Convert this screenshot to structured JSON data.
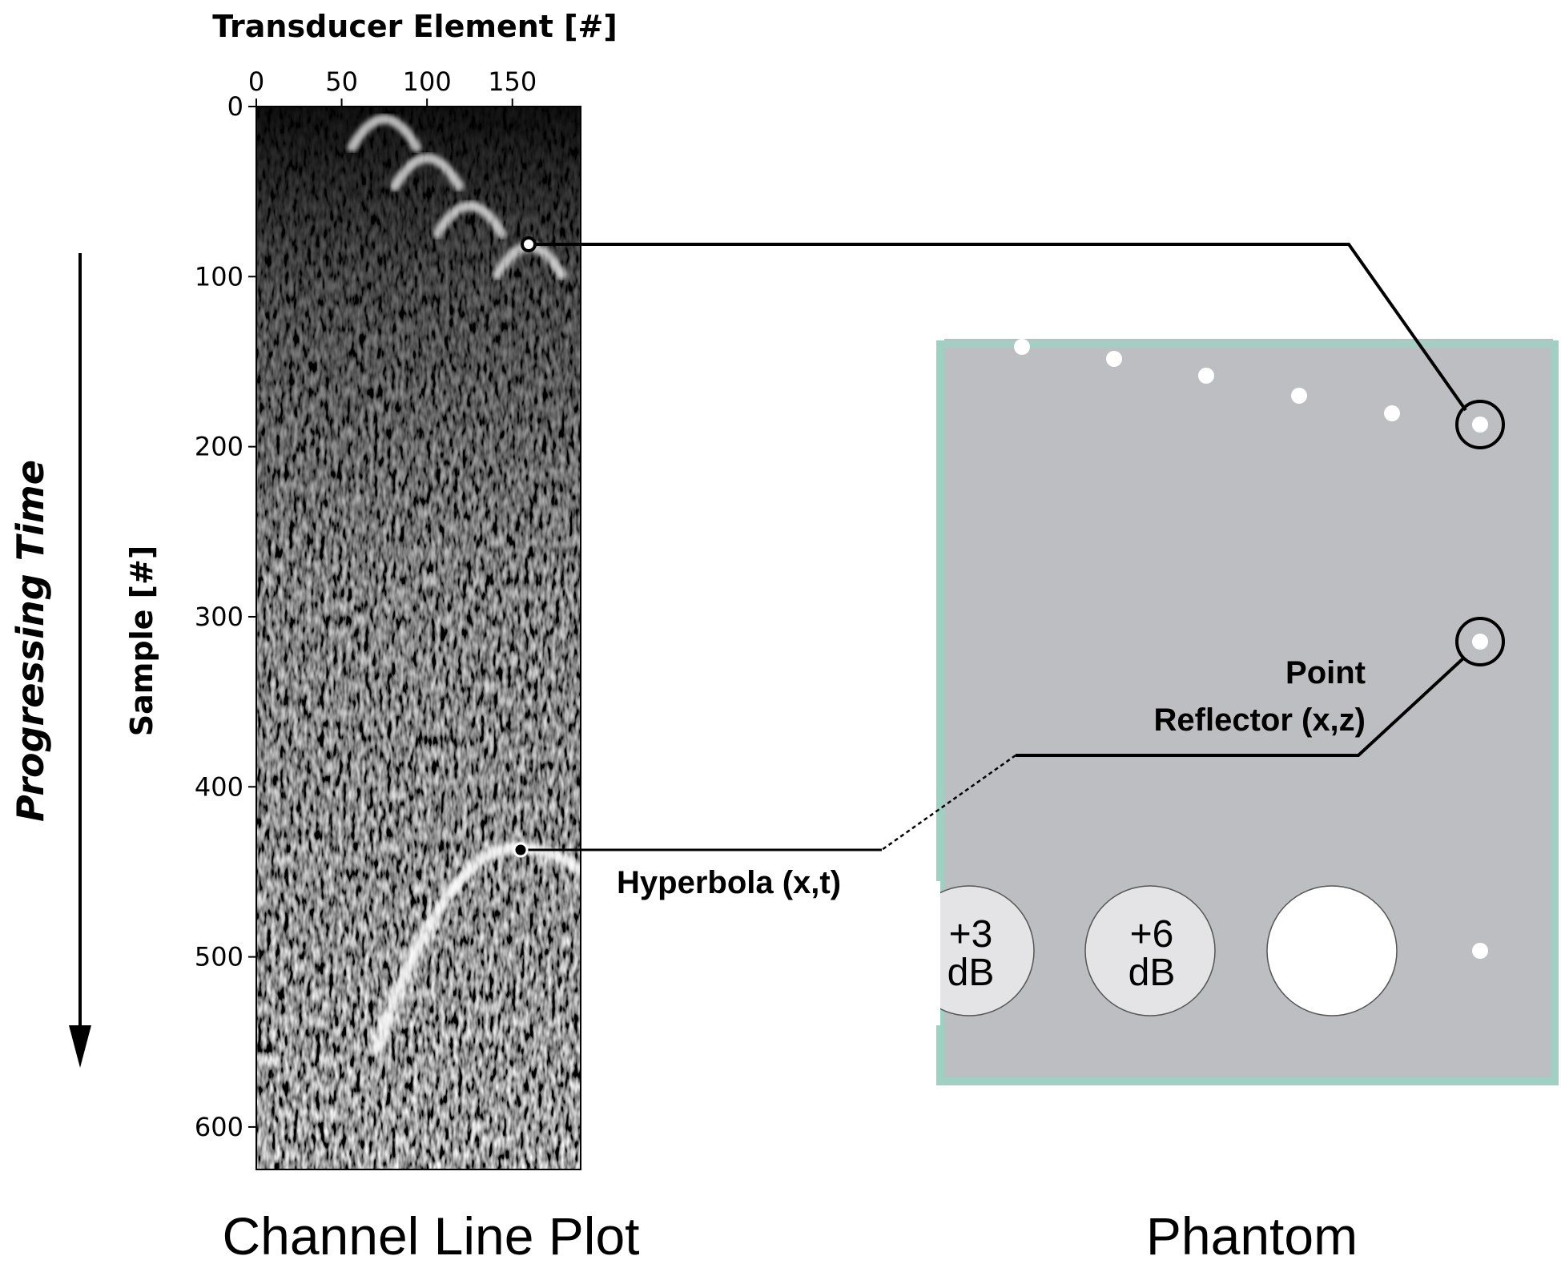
{
  "channel_plot": {
    "x_axis_title": "Transducer Element [#]",
    "y_axis_title": "Sample [#]",
    "x_ticks": [
      "0",
      "50",
      "100",
      "150"
    ],
    "y_ticks": [
      "0",
      "100",
      "200",
      "300",
      "400",
      "500",
      "600"
    ],
    "caption": "Channel Line Plot"
  },
  "time_arrow_label": "Progressing Time",
  "phantom": {
    "caption": "Phantom",
    "inclusion_labels": [
      {
        "line1": "+3",
        "line2": "dB"
      },
      {
        "line1": "+6",
        "line2": "dB"
      }
    ]
  },
  "annotations": {
    "point_reflector_line1": "Point",
    "point_reflector_line2": "Reflector (x,z)",
    "hyperbola": "Hyperbola (x,t)"
  },
  "colors": {
    "phantom_fill": "#bdbec1",
    "phantom_border": "#9fd1c2",
    "inclusion_fill": "#e4e4e6",
    "anechoic_fill": "#ffffff"
  },
  "chart_data": {
    "type": "heatmap",
    "x_values_shown": "transducer elements 0 to 190",
    "y_values_shown": "samples 0 to 625",
    "xlim": [
      0,
      190
    ],
    "ylim": [
      625,
      0
    ],
    "hyperbola_apexes": [
      {
        "element": 75,
        "sample": 5
      },
      {
        "element": 100,
        "sample": 28
      },
      {
        "element": 125,
        "sample": 56
      },
      {
        "element": 160,
        "sample": 80
      },
      {
        "element": 155,
        "sample": 436
      }
    ]
  }
}
